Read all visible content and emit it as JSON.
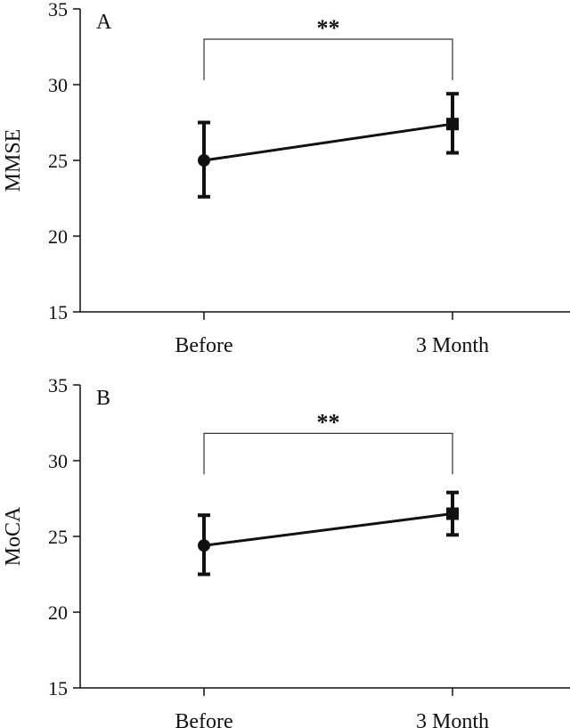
{
  "chart_data": [
    {
      "type": "line",
      "panel_label": "A",
      "ylabel": "MMSE",
      "xlabel": "",
      "categories": [
        "Before",
        "3 Month"
      ],
      "ylim": [
        15,
        35
      ],
      "yticks": [
        "15",
        "20",
        "25",
        "30",
        "35"
      ],
      "grid": false,
      "series": [
        {
          "values": [
            25.0,
            27.4
          ],
          "err_low": [
            22.6,
            25.5
          ],
          "err_high": [
            27.5,
            29.4
          ]
        }
      ],
      "significance": {
        "from": 0,
        "to": 1,
        "y": 33.0,
        "label": "**"
      }
    },
    {
      "type": "line",
      "panel_label": "B",
      "ylabel": "MoCA",
      "xlabel": "",
      "categories": [
        "Before",
        "3 Month"
      ],
      "ylim": [
        15,
        35
      ],
      "yticks": [
        "15",
        "20",
        "25",
        "30",
        "35"
      ],
      "grid": false,
      "series": [
        {
          "values": [
            24.4,
            26.5
          ],
          "err_low": [
            22.5,
            25.1
          ],
          "err_high": [
            26.4,
            27.9
          ]
        }
      ],
      "significance": {
        "from": 0,
        "to": 1,
        "y": 31.8,
        "label": "**"
      }
    }
  ]
}
